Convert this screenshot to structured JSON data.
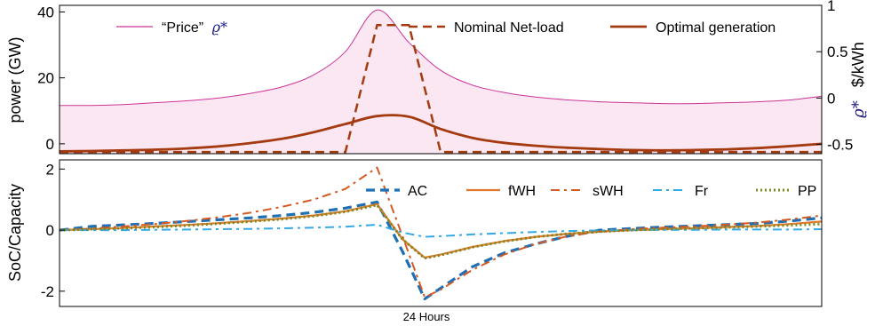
{
  "chart_data": [
    {
      "type": "line",
      "xlabel": "",
      "ylabel": "power (GW)",
      "ylabel_right": "$/kWh",
      "ylabel_right_symbol": "ϱ*",
      "ylim": [
        -3,
        42
      ],
      "yticks": [
        0,
        20,
        40
      ],
      "ylim_right": [
        -0.6,
        1.0
      ],
      "yticks_right": [
        -0.5,
        0,
        0.5,
        1
      ],
      "ytick_labels_right": [
        "-0.5",
        "0",
        "0.5",
        "1"
      ],
      "legend_position": "top",
      "x_hours": [
        0,
        1,
        2,
        3,
        4,
        5,
        6,
        7,
        8,
        9,
        10,
        11,
        12,
        13,
        14,
        15,
        16,
        17,
        18,
        19,
        20,
        21,
        22,
        23,
        24
      ],
      "series": [
        {
          "name": "“Price”",
          "name_symbol": "ϱ*",
          "axis": "right",
          "color": "#cc3399",
          "fill": "#fbe7f1",
          "y": [
            -0.08,
            -0.08,
            -0.07,
            -0.05,
            -0.03,
            0.0,
            0.05,
            0.12,
            0.25,
            0.5,
            0.95,
            0.6,
            0.3,
            0.14,
            0.06,
            0.01,
            -0.02,
            -0.04,
            -0.05,
            -0.06,
            -0.06,
            -0.05,
            -0.04,
            -0.02,
            0.02
          ]
        },
        {
          "name": "Nominal Net-load",
          "axis": "left",
          "style": "dashed",
          "color": "#a43a10",
          "y": [
            -2.5,
            -2.5,
            -2.5,
            -2.5,
            -2.5,
            -2.5,
            -2.5,
            -2.5,
            -2.5,
            -2.5,
            36,
            36,
            -2.5,
            -2.5,
            -2.5,
            -2.5,
            -2.5,
            -2.5,
            -2.5,
            -2.5,
            -2.5,
            -2.5,
            -2.5,
            -2.5,
            -2.5
          ]
        },
        {
          "name": "Optimal generation",
          "axis": "left",
          "style": "solid",
          "color": "#a43a10",
          "y": [
            -2.3,
            -2.2,
            -2.0,
            -1.8,
            -1.4,
            -0.8,
            0.2,
            1.5,
            3.5,
            6,
            8.4,
            8.2,
            4.5,
            1.8,
            0.3,
            -0.6,
            -1.2,
            -1.6,
            -1.9,
            -2.0,
            -1.9,
            -1.7,
            -1.3,
            -0.7,
            0
          ]
        }
      ]
    },
    {
      "type": "line",
      "xlabel": "24 Hours",
      "ylabel": "SoC/Capacity",
      "ylim": [
        -2.5,
        2.3
      ],
      "yticks": [
        -2,
        0,
        2
      ],
      "x_hours": [
        0,
        1,
        2,
        3,
        4,
        5,
        6,
        7,
        8,
        9,
        10,
        10.8,
        11.5,
        12,
        13,
        14,
        15,
        16,
        17,
        18,
        19,
        20,
        21,
        22,
        23,
        24
      ],
      "series": [
        {
          "name": "AC",
          "style": "dashed",
          "color": "#1f6fb5",
          "y": [
            0,
            0.12,
            0.17,
            0.22,
            0.28,
            0.34,
            0.4,
            0.48,
            0.58,
            0.72,
            0.92,
            -0.7,
            -2.25,
            -1.9,
            -1.2,
            -0.75,
            -0.45,
            -0.2,
            0,
            0.05,
            0.1,
            0.14,
            0.18,
            0.22,
            0.3,
            0.4
          ]
        },
        {
          "name": "fWH",
          "style": "solid",
          "color": "#e2782b",
          "y": [
            0,
            0.03,
            0.07,
            0.12,
            0.17,
            0.23,
            0.3,
            0.38,
            0.48,
            0.62,
            0.85,
            -0.3,
            -0.9,
            -0.8,
            -0.55,
            -0.36,
            -0.22,
            -0.12,
            -0.05,
            0,
            0.03,
            0.06,
            0.1,
            0.14,
            0.2,
            0.28
          ]
        },
        {
          "name": "sWH",
          "style": "dashdot",
          "color": "#d35a25",
          "y": [
            0,
            0.05,
            0.12,
            0.2,
            0.3,
            0.42,
            0.57,
            0.76,
            1.0,
            1.35,
            2.05,
            -0.2,
            -2.2,
            -1.95,
            -1.3,
            -0.8,
            -0.45,
            -0.2,
            -0.05,
            0.03,
            0.08,
            0.12,
            0.18,
            0.25,
            0.35,
            0.48
          ]
        },
        {
          "name": "Fr",
          "style": "dashdot",
          "color": "#35a9e6",
          "y": [
            0,
            0.0,
            0.0,
            0.01,
            0.02,
            0.03,
            0.04,
            0.06,
            0.08,
            0.11,
            0.18,
            -0.08,
            -0.22,
            -0.2,
            -0.14,
            -0.1,
            -0.06,
            -0.03,
            -0.01,
            0,
            0.01,
            0.01,
            0.02,
            0.02,
            0.02,
            0.03
          ]
        },
        {
          "name": "PP",
          "style": "dotted",
          "color": "#7a8b1e",
          "y": [
            0,
            0.03,
            0.06,
            0.1,
            0.15,
            0.21,
            0.28,
            0.36,
            0.46,
            0.6,
            0.82,
            -0.3,
            -0.92,
            -0.82,
            -0.56,
            -0.37,
            -0.22,
            -0.12,
            -0.05,
            0,
            0.03,
            0.06,
            0.09,
            0.12,
            0.16,
            0.2
          ]
        }
      ]
    }
  ]
}
